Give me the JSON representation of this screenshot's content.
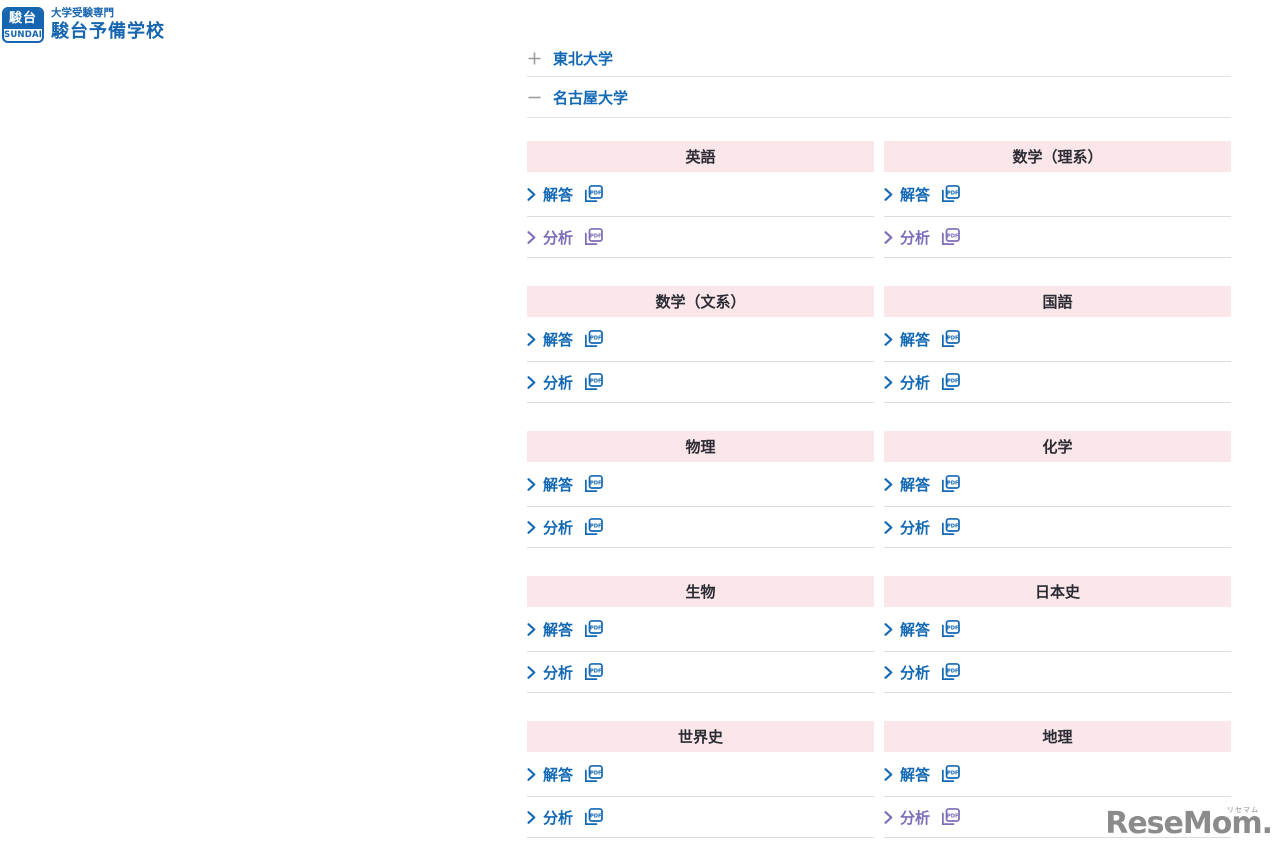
{
  "brand": {
    "logo_box_top": "駿台",
    "logo_box_bottom": "SUNDAI",
    "tagline": "大学受験専門",
    "school_name": "駿台予備学校"
  },
  "colors": {
    "brand_blue": "#1565b0",
    "link_blue": "#1268b5",
    "visited_purple": "#7e6cb8",
    "header_pink": "#fbe7ea",
    "divider_gray": "#dcdcdc"
  },
  "universities": [
    {
      "name": "東北大学",
      "toggle": "plus",
      "expanded": false
    },
    {
      "name": "名古屋大学",
      "toggle": "minus",
      "expanded": true
    }
  ],
  "links": {
    "answer_label": "解答",
    "analysis_label": "分析",
    "pdf_icon_label": "PDF"
  },
  "subjects": [
    {
      "name": "英語",
      "answer_visited": false,
      "analysis_visited": true
    },
    {
      "name": "数学（理系）",
      "answer_visited": false,
      "analysis_visited": true
    },
    {
      "name": "数学（文系）",
      "answer_visited": false,
      "analysis_visited": false
    },
    {
      "name": "国語",
      "answer_visited": false,
      "analysis_visited": false
    },
    {
      "name": "物理",
      "answer_visited": false,
      "analysis_visited": false
    },
    {
      "name": "化学",
      "answer_visited": false,
      "analysis_visited": false
    },
    {
      "name": "生物",
      "answer_visited": false,
      "analysis_visited": false
    },
    {
      "name": "日本史",
      "answer_visited": false,
      "analysis_visited": false
    },
    {
      "name": "世界史",
      "answer_visited": false,
      "analysis_visited": false
    },
    {
      "name": "地理",
      "answer_visited": false,
      "analysis_visited": true
    }
  ],
  "watermark": {
    "text": "ReseMom.",
    "ruby": "リセマム"
  }
}
